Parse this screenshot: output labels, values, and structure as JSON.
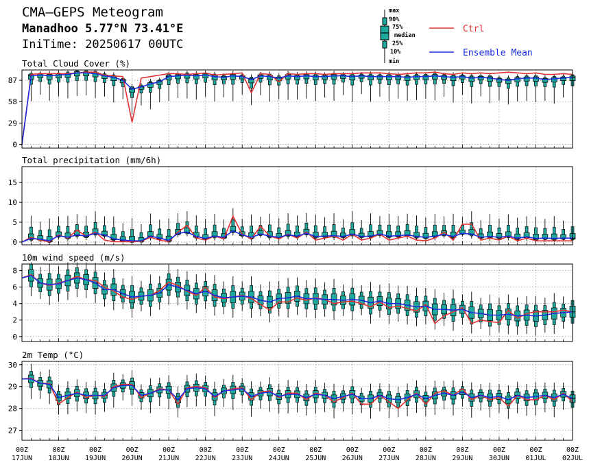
{
  "header": {
    "title": "CMA—GEPS Meteogram",
    "location": "Manadhoo 5.77°N 73.41°E",
    "init_time": "IniTime: 20250617 00UTC"
  },
  "legend": {
    "box_labels": [
      "max",
      "90%",
      "75%",
      "median",
      "25%",
      "10%",
      "min"
    ],
    "ctrl_label": "Ctrl",
    "mean_label": "Ensemble Mean",
    "ctrl_color": "#e03030",
    "mean_color": "#1a2ee0",
    "box_color": "#1fa89e"
  },
  "chart_data": [
    {
      "type": "box",
      "title": "Total Cloud Cover (%)",
      "yticks": [
        0,
        29,
        58,
        87
      ],
      "ylim": [
        -5,
        101
      ],
      "x_hours": [
        0,
        6,
        12,
        18,
        24,
        30,
        36,
        42,
        48,
        54,
        60,
        66,
        72,
        78,
        84,
        90,
        96,
        102,
        108,
        114,
        120,
        126,
        132,
        138,
        144,
        150,
        156,
        162,
        168,
        174,
        180,
        186,
        192,
        198,
        204,
        210,
        216,
        222,
        228,
        234,
        240,
        246,
        252,
        258,
        264,
        270,
        276,
        282,
        288,
        294,
        300,
        306,
        312,
        318,
        324,
        330,
        336,
        342,
        348,
        354,
        360
      ],
      "ctrl": [
        0,
        95,
        96,
        96,
        96,
        96,
        97,
        98,
        98,
        94,
        93,
        92,
        30,
        90,
        92,
        94,
        96,
        96,
        95,
        96,
        97,
        94,
        95,
        96,
        97,
        70,
        96,
        95,
        85,
        96,
        95,
        96,
        96,
        95,
        96,
        96,
        96,
        97,
        97,
        97,
        96,
        95,
        96,
        97,
        97,
        98,
        96,
        95,
        97,
        96,
        97,
        96,
        97,
        98,
        97,
        96,
        97,
        95,
        95,
        96,
        95
      ],
      "mean": [
        0,
        93,
        94,
        93,
        94,
        95,
        97,
        97,
        96,
        93,
        91,
        87,
        75,
        78,
        82,
        85,
        92,
        93,
        94,
        93,
        94,
        92,
        91,
        93,
        92,
        88,
        93,
        92,
        90,
        93,
        92,
        93,
        92,
        92,
        93,
        93,
        92,
        93,
        92,
        92,
        92,
        92,
        91,
        92,
        92,
        93,
        92,
        91,
        92,
        90,
        91,
        90,
        88,
        87,
        89,
        90,
        90,
        88,
        89,
        90,
        91
      ],
      "boxes": "generated by script from mean (min/10/25/50/75/90/max)"
    },
    {
      "type": "box",
      "title": "Total precipitation (mm/6h)",
      "yticks": [
        0,
        5,
        10,
        15
      ],
      "ylim": [
        -0.7,
        19
      ],
      "x_hours": [
        0,
        6,
        12,
        18,
        24,
        30,
        36,
        42,
        48,
        54,
        60,
        66,
        72,
        78,
        84,
        90,
        96,
        102,
        108,
        114,
        120,
        126,
        132,
        138,
        144,
        150,
        156,
        162,
        168,
        174,
        180,
        186,
        192,
        198,
        204,
        210,
        216,
        222,
        228,
        234,
        240,
        246,
        252,
        258,
        264,
        270,
        276,
        282,
        288,
        294,
        300,
        306,
        312,
        318,
        324,
        330,
        336,
        342,
        348,
        354,
        360
      ],
      "ctrl": [
        0,
        1.2,
        0.4,
        0.1,
        1.8,
        1.0,
        3.0,
        1.5,
        2.5,
        0.5,
        0.1,
        0.1,
        0.1,
        0.2,
        1.2,
        0.5,
        0.1,
        2.5,
        4.2,
        1.0,
        0.5,
        1.5,
        0.8,
        6.5,
        2.0,
        0.8,
        4.0,
        1.5,
        0.8,
        2.0,
        1.0,
        2.5,
        0.5,
        1.0,
        1.5,
        0.5,
        2.0,
        0.5,
        1.0,
        2.0,
        0.5,
        1.0,
        1.5,
        0.5,
        0.3,
        1.0,
        2.5,
        0.5,
        4.5,
        4.5,
        0.5,
        1.0,
        0.5,
        1.5,
        0.3,
        1.0,
        0.3,
        0.3,
        0.3,
        0.3,
        0.3
      ],
      "mean": [
        0,
        0.9,
        0.7,
        0.3,
        1.6,
        1.2,
        1.8,
        1.5,
        2.2,
        1.8,
        0.8,
        0.5,
        0.3,
        0.3,
        1.5,
        1.0,
        0.4,
        2.2,
        2.5,
        1.4,
        0.9,
        1.5,
        1.2,
        2.8,
        1.8,
        1.2,
        2.0,
        1.5,
        1.2,
        1.8,
        1.5,
        2.2,
        1.4,
        1.5,
        1.6,
        1.4,
        2.0,
        1.4,
        1.5,
        2.0,
        1.5,
        1.6,
        1.8,
        1.4,
        1.2,
        1.5,
        1.9,
        1.4,
        2.2,
        2.0,
        1.2,
        1.4,
        1.2,
        1.5,
        1.0,
        1.3,
        0.9,
        1.0,
        0.9,
        1.0,
        1.0
      ],
      "boxes": "generated by script from mean (min/10/25/50/75/90/max)"
    },
    {
      "type": "box",
      "title": "10m wind speed (m/s)",
      "yticks": [
        0,
        2,
        4,
        6,
        8
      ],
      "ylim": [
        -0.6,
        8.8
      ],
      "x_hours": [
        0,
        6,
        12,
        18,
        24,
        30,
        36,
        42,
        48,
        54,
        60,
        66,
        72,
        78,
        84,
        90,
        96,
        102,
        108,
        114,
        120,
        126,
        132,
        138,
        144,
        150,
        156,
        162,
        168,
        174,
        180,
        186,
        192,
        198,
        204,
        210,
        216,
        222,
        228,
        234,
        240,
        246,
        252,
        258,
        264,
        270,
        276,
        282,
        288,
        294,
        300,
        306,
        312,
        318,
        324,
        330,
        336,
        342,
        348,
        354,
        360
      ],
      "ctrl": [
        7.1,
        7.5,
        6.5,
        6.2,
        6.5,
        6.8,
        7.3,
        6.9,
        6.8,
        6.0,
        5.5,
        4.8,
        4.5,
        4.9,
        5.0,
        5.6,
        6.6,
        6.2,
        5.5,
        5.0,
        6.0,
        4.8,
        4.6,
        4.8,
        5.0,
        4.6,
        3.9,
        3.2,
        4.2,
        4.2,
        4.7,
        4.4,
        4.7,
        4.5,
        4.0,
        4.2,
        4.3,
        4.0,
        3.6,
        4.2,
        3.5,
        3.7,
        3.4,
        3.1,
        3.9,
        1.6,
        2.5,
        3.0,
        3.5,
        1.6,
        2.0,
        1.8,
        1.7,
        3.2,
        2.2,
        2.8,
        3.0,
        3.0,
        3.0,
        3.2,
        3.0
      ],
      "mean": [
        7.1,
        7.4,
        6.5,
        6.3,
        6.4,
        6.8,
        7.1,
        6.9,
        6.5,
        5.7,
        5.7,
        5.2,
        4.8,
        4.9,
        5.0,
        5.3,
        6.3,
        6.0,
        5.6,
        5.2,
        5.5,
        5.0,
        4.7,
        4.8,
        4.9,
        4.8,
        4.4,
        4.2,
        4.6,
        4.7,
        4.9,
        4.6,
        4.6,
        4.5,
        4.5,
        4.4,
        4.5,
        4.4,
        4.1,
        4.3,
        4.0,
        4.0,
        3.8,
        3.6,
        3.7,
        3.3,
        3.3,
        3.2,
        3.3,
        2.9,
        2.8,
        2.6,
        2.6,
        2.7,
        2.5,
        2.6,
        2.5,
        2.6,
        2.8,
        2.9,
        3.0
      ],
      "boxes": "generated by script from mean (min/10/25/50/75/90/max)"
    },
    {
      "type": "box",
      "title": "2m Temp (°C)",
      "yticks": [
        27,
        28,
        29,
        30
      ],
      "ylim": [
        26.55,
        30.15
      ],
      "x_hours": [
        0,
        6,
        12,
        18,
        24,
        30,
        36,
        42,
        48,
        54,
        60,
        66,
        72,
        78,
        84,
        90,
        96,
        102,
        108,
        114,
        120,
        126,
        132,
        138,
        144,
        150,
        156,
        162,
        168,
        174,
        180,
        186,
        192,
        198,
        204,
        210,
        216,
        222,
        228,
        234,
        240,
        246,
        252,
        258,
        264,
        270,
        276,
        282,
        288,
        294,
        300,
        306,
        312,
        318,
        324,
        330,
        336,
        342,
        348,
        354,
        360
      ],
      "ctrl": [
        29.35,
        29.38,
        29.15,
        29.15,
        28.2,
        28.5,
        28.75,
        28.5,
        28.6,
        28.55,
        29.0,
        29.1,
        29.1,
        28.5,
        28.7,
        28.9,
        28.85,
        28.2,
        28.95,
        29.0,
        28.95,
        28.5,
        28.8,
        28.9,
        28.95,
        28.4,
        28.75,
        28.8,
        28.5,
        28.7,
        28.7,
        28.4,
        28.7,
        28.6,
        28.3,
        28.5,
        28.7,
        28.2,
        28.2,
        28.6,
        28.3,
        28.0,
        28.4,
        28.7,
        28.2,
        28.7,
        28.8,
        28.6,
        28.9,
        28.4,
        28.6,
        28.4,
        28.5,
        28.1,
        28.6,
        28.4,
        28.4,
        28.6,
        28.4,
        28.7,
        28.3
      ],
      "mean": [
        29.35,
        29.35,
        29.15,
        29.1,
        28.5,
        28.6,
        28.7,
        28.6,
        28.6,
        28.6,
        28.95,
        29.05,
        29.05,
        28.6,
        28.7,
        28.85,
        28.85,
        28.4,
        28.9,
        28.95,
        28.9,
        28.55,
        28.8,
        28.85,
        28.9,
        28.55,
        28.7,
        28.75,
        28.55,
        28.65,
        28.65,
        28.5,
        28.65,
        28.6,
        28.45,
        28.55,
        28.65,
        28.45,
        28.45,
        28.6,
        28.45,
        28.4,
        28.5,
        28.65,
        28.45,
        28.6,
        28.7,
        28.6,
        28.75,
        28.5,
        28.6,
        28.5,
        28.55,
        28.4,
        28.6,
        28.5,
        28.55,
        28.6,
        28.5,
        28.65,
        28.45
      ],
      "boxes": "generated by script from mean (min/10/25/50/75/90/max)"
    }
  ],
  "x_axis": {
    "labels": [
      {
        "hour": 0,
        "top": "00Z",
        "bottom": "17JUN"
      },
      {
        "hour": 24,
        "top": "00Z",
        "bottom": "18JUN"
      },
      {
        "hour": 48,
        "top": "00Z",
        "bottom": "19JUN"
      },
      {
        "hour": 72,
        "top": "00Z",
        "bottom": "20JUN"
      },
      {
        "hour": 96,
        "top": "00Z",
        "bottom": "21JUN"
      },
      {
        "hour": 120,
        "top": "00Z",
        "bottom": "22JUN"
      },
      {
        "hour": 144,
        "top": "00Z",
        "bottom": "23JUN"
      },
      {
        "hour": 168,
        "top": "00Z",
        "bottom": "24JUN"
      },
      {
        "hour": 192,
        "top": "00Z",
        "bottom": "25JUN"
      },
      {
        "hour": 216,
        "top": "00Z",
        "bottom": "26JUN"
      },
      {
        "hour": 240,
        "top": "00Z",
        "bottom": "27JUN"
      },
      {
        "hour": 264,
        "top": "00Z",
        "bottom": "28JUN"
      },
      {
        "hour": 288,
        "top": "00Z",
        "bottom": "29JUN"
      },
      {
        "hour": 312,
        "top": "00Z",
        "bottom": "30JUN"
      },
      {
        "hour": 336,
        "top": "00Z",
        "bottom": "01JUL"
      },
      {
        "hour": 360,
        "top": "00Z",
        "bottom": "02JUL"
      }
    ]
  }
}
